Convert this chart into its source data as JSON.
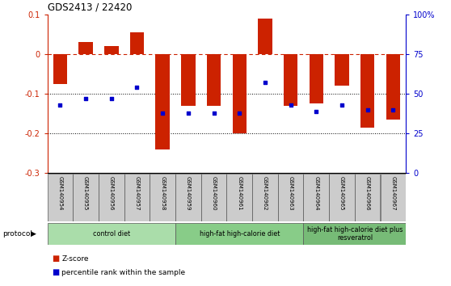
{
  "title": "GDS2413 / 22420",
  "samples": [
    "GSM140954",
    "GSM140955",
    "GSM140956",
    "GSM140957",
    "GSM140958",
    "GSM140959",
    "GSM140960",
    "GSM140961",
    "GSM140962",
    "GSM140963",
    "GSM140964",
    "GSM140965",
    "GSM140966",
    "GSM140967"
  ],
  "zscore": [
    -0.075,
    0.03,
    0.02,
    0.055,
    -0.24,
    -0.13,
    -0.13,
    -0.2,
    0.09,
    -0.13,
    -0.125,
    -0.08,
    -0.185,
    -0.165
  ],
  "pct_rank": [
    43,
    47,
    47,
    54,
    38,
    38,
    38,
    38,
    57,
    43,
    39,
    43,
    40,
    40
  ],
  "bar_color": "#cc2200",
  "dot_color": "#0000cc",
  "ylim_left": [
    -0.3,
    0.1
  ],
  "ylim_right": [
    0,
    100
  ],
  "yticks_left": [
    -0.3,
    -0.2,
    -0.1,
    0.0,
    0.1
  ],
  "ytick_labels_left": [
    "-0.3",
    "-0.2",
    "-0.1",
    "0",
    "0.1"
  ],
  "yticks_right": [
    0,
    25,
    50,
    75,
    100
  ],
  "ytick_labels_right": [
    "0",
    "25",
    "50",
    "75",
    "100%"
  ],
  "dotted_lines": [
    -0.1,
    -0.2
  ],
  "groups": [
    {
      "label": "control diet",
      "start": 0,
      "end": 4,
      "color": "#aaddaa"
    },
    {
      "label": "high-fat high-calorie diet",
      "start": 5,
      "end": 9,
      "color": "#88cc88"
    },
    {
      "label": "high-fat high-calorie diet plus\nresveratrol",
      "start": 10,
      "end": 13,
      "color": "#77bb77"
    }
  ],
  "legend_zscore": "Z-score",
  "legend_pct": "percentile rank within the sample",
  "bar_width": 0.55
}
